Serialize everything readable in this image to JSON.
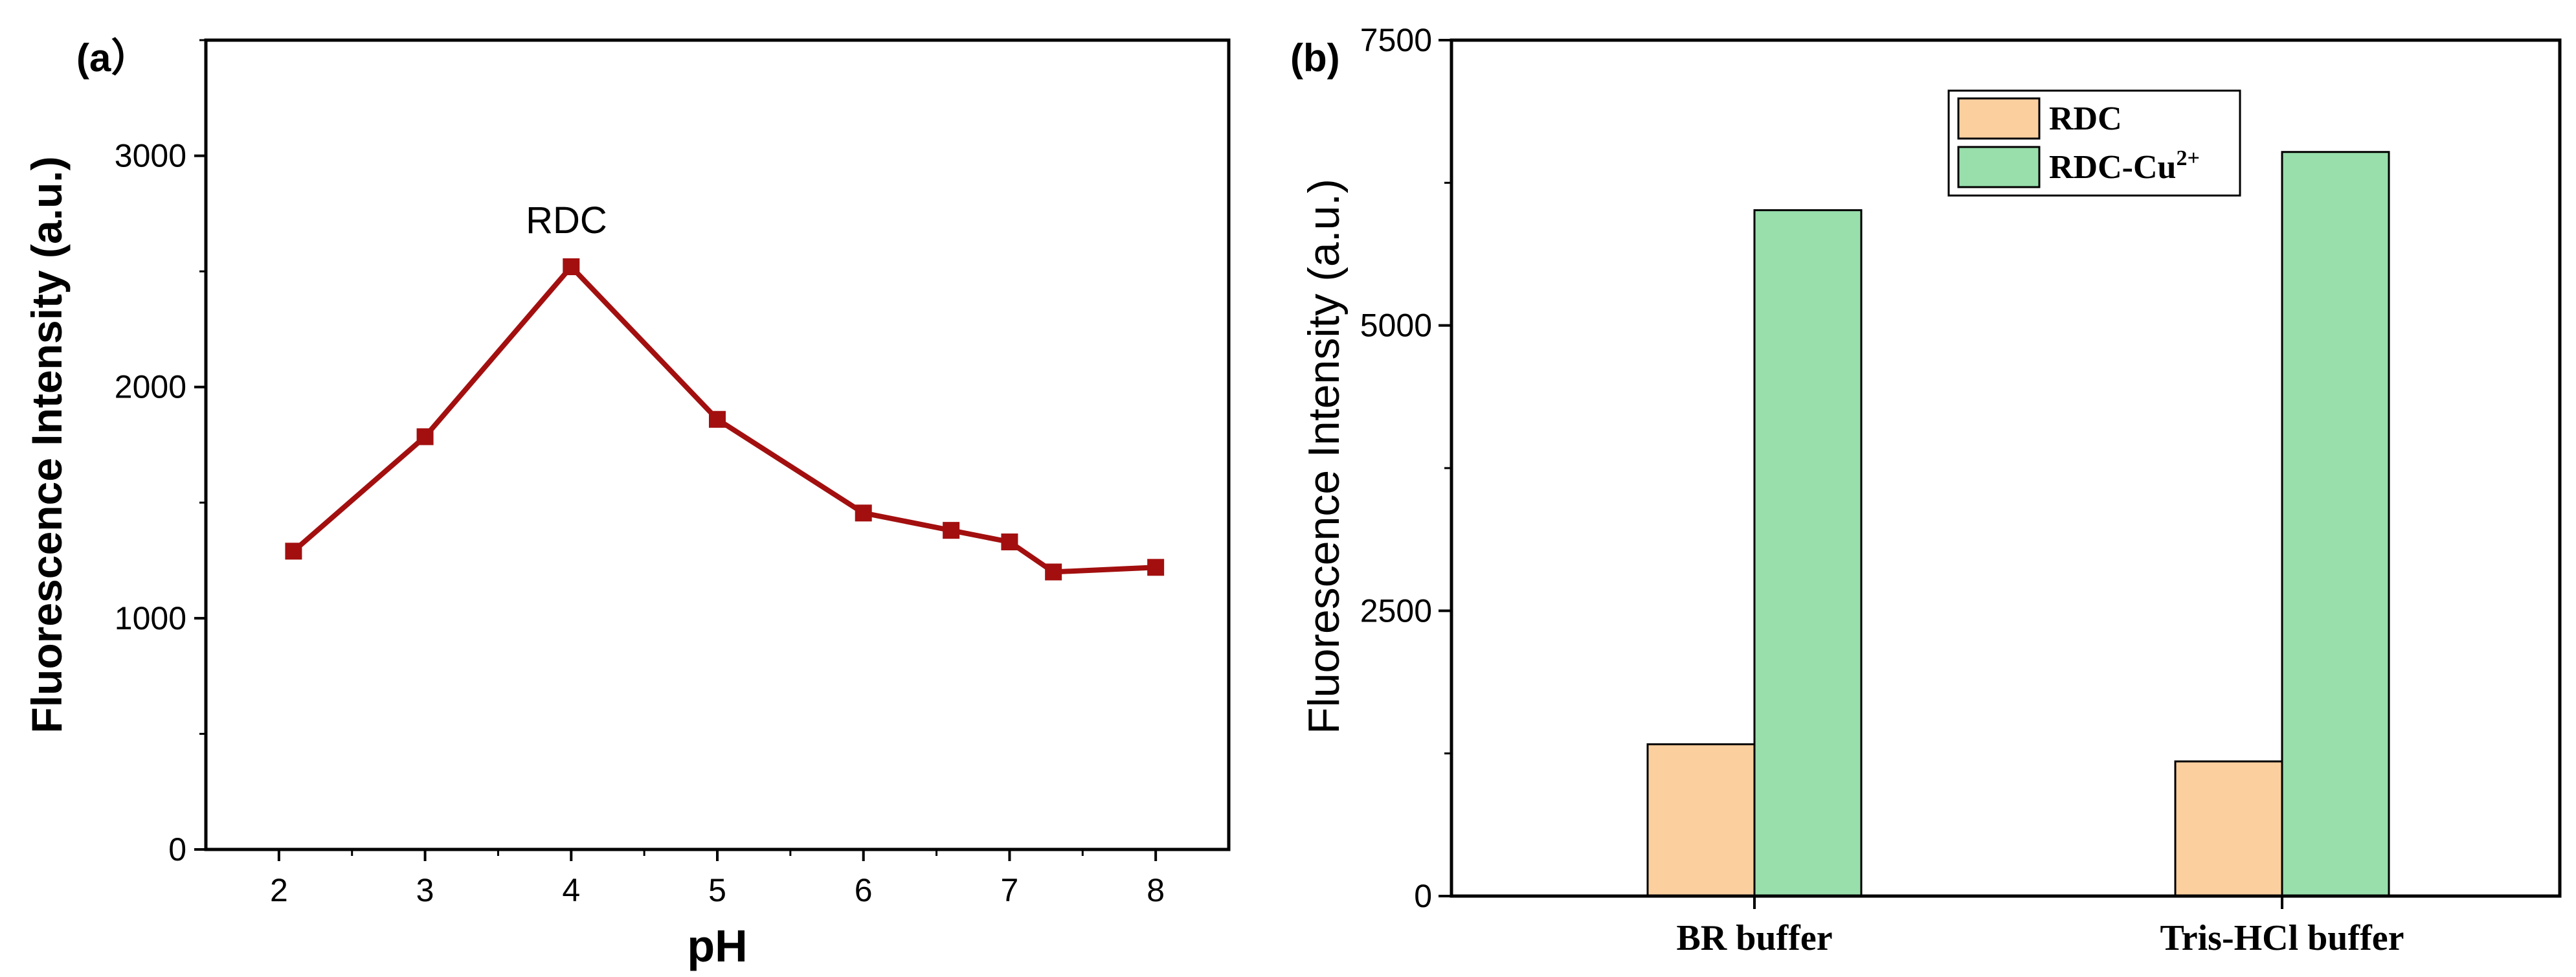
{
  "chart_data": [
    {
      "type": "line",
      "panel_label": "(a）",
      "xlabel": "pH",
      "ylabel": "Fluorescence Intensity (a.u.)",
      "annotation": "RDC",
      "xlim": [
        1.5,
        8.5
      ],
      "ylim": [
        0,
        3500
      ],
      "xticks": [
        2,
        3,
        4,
        5,
        6,
        7,
        8
      ],
      "yticks": [
        0,
        1000,
        2000,
        3000
      ],
      "series": [
        {
          "color": "#a30f0f",
          "x": [
            2.1,
            3,
            4,
            5,
            6,
            6.6,
            7,
            7.3,
            8
          ],
          "y": [
            1290,
            1785,
            2520,
            1860,
            1455,
            1380,
            1330,
            1200,
            1220
          ]
        }
      ]
    },
    {
      "type": "bar",
      "panel_label": "(b)",
      "ylabel": "Fluorescence Intensity (a.u.)",
      "ylim": [
        0,
        7500
      ],
      "yticks": [
        0,
        2500,
        5000,
        7500
      ],
      "categories": [
        "BR buffer",
        "Tris-HCl buffer"
      ],
      "legend_position": "top-center",
      "series": [
        {
          "name": "RDC",
          "color": "#fccf9f",
          "values": [
            1330,
            1180
          ]
        },
        {
          "name_base": "RDC-Cu",
          "name_sup": "2+",
          "color": "#98dfab",
          "values": [
            6010,
            6520
          ]
        }
      ]
    }
  ]
}
